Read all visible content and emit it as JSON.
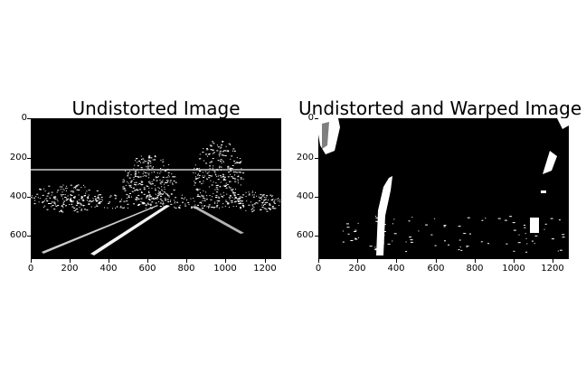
{
  "panels": [
    {
      "title": "Undistorted Image",
      "yticks": [
        "0",
        "200",
        "400",
        "600"
      ],
      "xticks": [
        "0",
        "200",
        "400",
        "600",
        "800",
        "1000",
        "1200"
      ]
    },
    {
      "title": "Undistorted and Warped Image",
      "yticks": [
        "0",
        "200",
        "400",
        "600"
      ],
      "xticks": [
        "0",
        "200",
        "400",
        "600",
        "800",
        "1000",
        "1200"
      ]
    }
  ],
  "colors": {
    "background": "#ffffff",
    "image_background": "#000000",
    "image_foreground": "#ffffff"
  }
}
